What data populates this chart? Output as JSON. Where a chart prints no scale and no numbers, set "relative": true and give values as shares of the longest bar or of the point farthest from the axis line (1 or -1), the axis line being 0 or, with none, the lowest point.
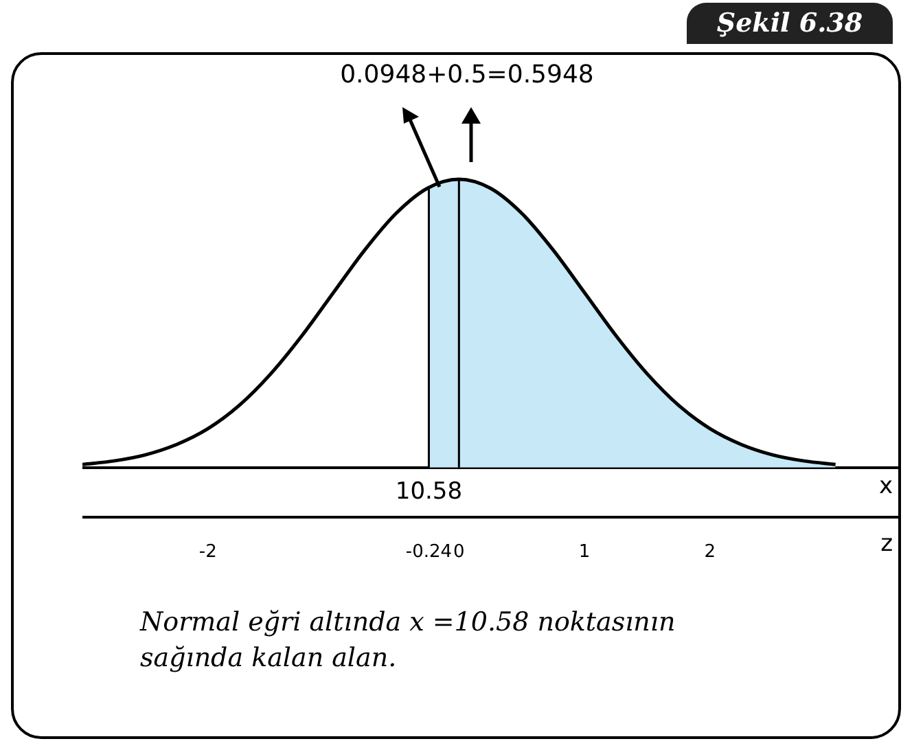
{
  "chart_data": {
    "type": "line",
    "title": "Şekil 6.38",
    "relative": true,
    "xlabel": "z",
    "x2label": "x",
    "xlim": [
      -3,
      3.5
    ],
    "xticks": [
      -2,
      -0.24,
      0,
      1,
      2
    ],
    "series": [
      {
        "type": "line",
        "color": "#000000",
        "x": [
          -3,
          -2.75,
          -2.5,
          -2.25,
          -2,
          -1.75,
          -1.5,
          -1.25,
          -1,
          -0.75,
          -0.5,
          -0.25,
          0,
          0.25,
          0.5,
          0.75,
          1,
          1.25,
          1.5,
          1.75,
          2,
          2.25,
          2.5,
          2.75,
          3
        ],
        "values": [
          0.011,
          0.023,
          0.044,
          0.08,
          0.135,
          0.216,
          0.325,
          0.458,
          0.607,
          0.755,
          0.882,
          0.969,
          1,
          0.969,
          0.882,
          0.755,
          0.607,
          0.458,
          0.325,
          0.216,
          0.135,
          0.08,
          0.044,
          0.023,
          0.011
        ]
      },
      {
        "type": "area",
        "color": "#c6e8f7",
        "x": [
          -0.24,
          0,
          0.25,
          0.5,
          0.75,
          1,
          1.25,
          1.5,
          1.75,
          2,
          2.25,
          2.5,
          2.75,
          3
        ],
        "values": [
          0.972,
          1,
          0.969,
          0.882,
          0.755,
          0.607,
          0.458,
          0.325,
          0.216,
          0.135,
          0.08,
          0.044,
          0.023,
          0.011
        ]
      }
    ],
    "ref_lines": [
      {
        "axis": "x",
        "value": -0.24,
        "color": "#000000"
      },
      {
        "axis": "x",
        "value": 0,
        "color": "#000000"
      }
    ],
    "annotations": [
      "10.58",
      "0.0948+0.5=0.5948",
      "Normal eğri altında x =10.58 noktasının sağında kalan alan."
    ],
    "grid": false,
    "legend": false
  }
}
